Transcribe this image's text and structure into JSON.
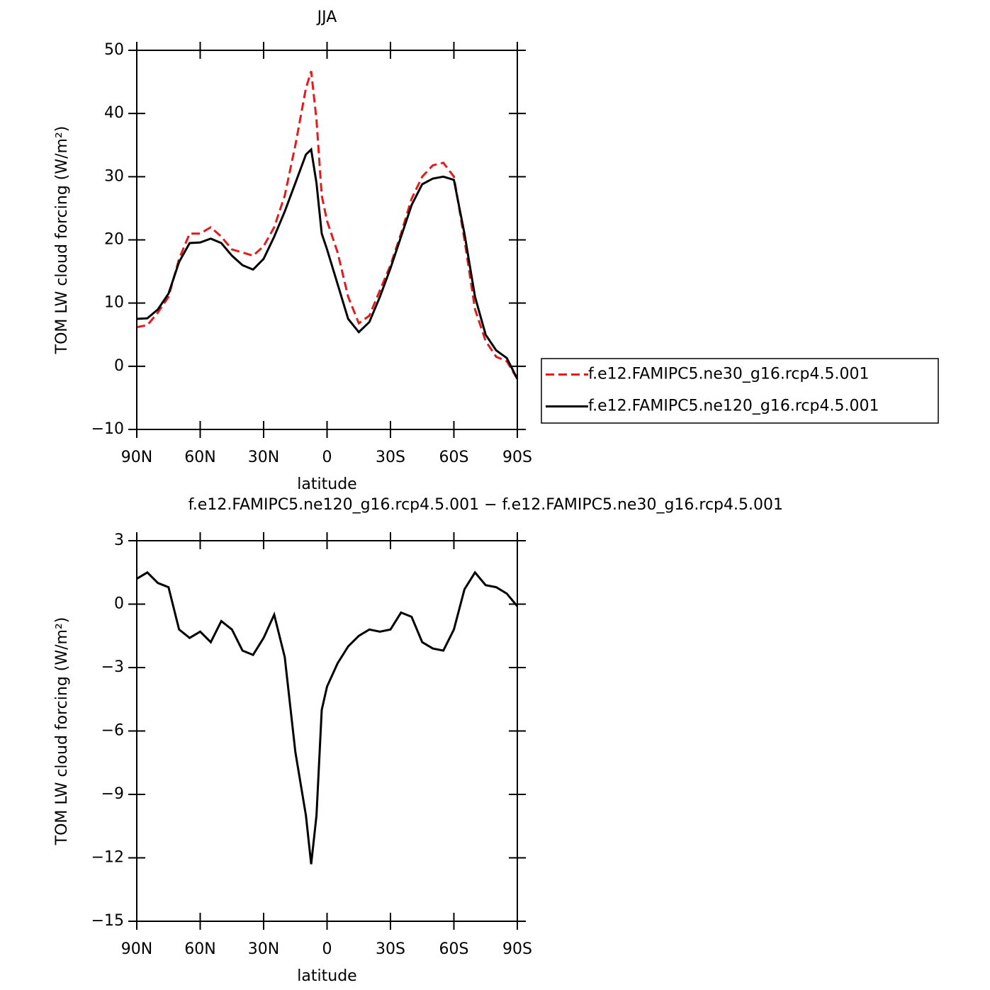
{
  "chart_data": [
    {
      "type": "line",
      "title": "JJA",
      "xlabel": "latitude",
      "ylabel": "TOM LW cloud forcing (W/m²)",
      "x": [
        90,
        85,
        80,
        75,
        70,
        65,
        60,
        55,
        50,
        45,
        40,
        35,
        30,
        25,
        20,
        15,
        10,
        7.5,
        5,
        2.5,
        0,
        -5,
        -10,
        -15,
        -20,
        -25,
        -30,
        -35,
        -40,
        -45,
        -50,
        -55,
        -60,
        -65,
        -70,
        -75,
        -80,
        -85,
        -90
      ],
      "series": [
        {
          "name": "f.e12.FAMIPC5.ne30_g16.rcp4.5.001",
          "color": "#e41a1c",
          "dashed": true,
          "values": [
            6.2,
            6.5,
            8.5,
            11,
            17,
            21,
            21,
            22,
            20.5,
            18.5,
            18,
            17.5,
            19,
            22,
            27,
            35,
            44,
            46.7,
            39,
            27,
            23,
            18,
            11,
            6.8,
            8,
            12,
            16,
            21,
            26.5,
            30,
            31.8,
            32.2,
            30,
            20,
            9,
            4,
            1.5,
            0.8,
            -2
          ]
        },
        {
          "name": "f.e12.FAMIPC5.ne120_g16.rcp4.5.001",
          "color": "#000000",
          "dashed": false,
          "values": [
            7.5,
            7.6,
            9,
            11.5,
            16.5,
            19.5,
            19.6,
            20.2,
            19.5,
            17.5,
            16,
            15.3,
            17,
            20.5,
            24.5,
            29,
            33.5,
            34.3,
            29,
            21,
            18.5,
            13,
            7.5,
            5.4,
            7,
            11,
            15.5,
            20.5,
            25.5,
            28.8,
            29.7,
            30,
            29.5,
            21,
            11,
            5,
            2.5,
            1.3,
            -2
          ]
        }
      ],
      "xlim": [
        90,
        -90
      ],
      "xticks": [
        {
          "value": 90,
          "label": "90N"
        },
        {
          "value": 60,
          "label": "60N"
        },
        {
          "value": 30,
          "label": "30N"
        },
        0,
        {
          "value": -30,
          "label": "30S"
        },
        {
          "value": -60,
          "label": "60S"
        },
        {
          "value": -90,
          "label": "90S"
        }
      ],
      "ylim": [
        -10,
        50
      ],
      "yticks": [
        {
          "value": -10,
          "label": "−10"
        },
        0,
        10,
        20,
        30,
        40,
        50
      ],
      "legend": "right"
    },
    {
      "type": "line",
      "title": "f.e12.FAMIPC5.ne120_g16.rcp4.5.001 − f.e12.FAMIPC5.ne30_g16.rcp4.5.001",
      "xlabel": "latitude",
      "ylabel": "TOM LW cloud forcing (W/m²)",
      "x": [
        90,
        85,
        80,
        75,
        70,
        65,
        60,
        55,
        50,
        45,
        40,
        35,
        30,
        25,
        20,
        15,
        10,
        7.5,
        5,
        2.5,
        0,
        -5,
        -10,
        -15,
        -20,
        -25,
        -30,
        -35,
        -40,
        -45,
        -50,
        -55,
        -60,
        -65,
        -70,
        -75,
        -80,
        -85,
        -90
      ],
      "color": "#000000",
      "values": [
        1.2,
        1.5,
        1.0,
        0.8,
        -1.2,
        -1.6,
        -1.3,
        -1.8,
        -0.8,
        -1.2,
        -2.2,
        -2.4,
        -1.6,
        -0.5,
        -2.5,
        -7,
        -10,
        -12.3,
        -10,
        -5,
        -3.9,
        -2.8,
        -2.0,
        -1.5,
        -1.2,
        -1.3,
        -1.2,
        -0.4,
        -0.6,
        -1.8,
        -2.1,
        -2.2,
        -1.2,
        0.7,
        1.5,
        0.9,
        0.8,
        0.5,
        -0.1
      ],
      "xlim": [
        90,
        -90
      ],
      "xticks": [
        {
          "value": 90,
          "label": "90N"
        },
        {
          "value": 60,
          "label": "60N"
        },
        {
          "value": 30,
          "label": "30N"
        },
        0,
        {
          "value": -30,
          "label": "30S"
        },
        {
          "value": -60,
          "label": "60S"
        },
        {
          "value": -90,
          "label": "90S"
        }
      ],
      "ylim": [
        -15,
        3
      ],
      "yticks": [
        {
          "value": -15,
          "label": "−15"
        },
        {
          "value": -12,
          "label": "−12"
        },
        {
          "value": -9,
          "label": "−9"
        },
        {
          "value": -6,
          "label": "−6"
        },
        {
          "value": -3,
          "label": "−3"
        },
        0,
        3
      ]
    }
  ]
}
